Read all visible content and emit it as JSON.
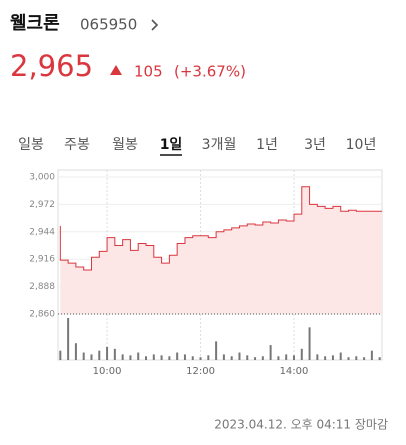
{
  "header": {
    "name": "웰크론",
    "code": "065950",
    "price": "2,965",
    "change": "105",
    "change_pct": "(+3.67%)"
  },
  "tabs": [
    "일봉",
    "주봉",
    "월봉",
    "1일",
    "3개월",
    "1년",
    "3년",
    "10년"
  ],
  "chart_data": {
    "type": "line",
    "x": [
      540,
      550,
      560,
      570,
      580,
      590,
      600,
      610,
      620,
      630,
      640,
      650,
      660,
      670,
      680,
      690,
      700,
      710,
      720,
      730,
      740,
      750,
      760,
      770,
      780,
      790,
      800,
      810,
      820,
      830,
      840,
      850,
      860,
      870,
      880,
      890,
      900,
      910,
      920,
      930,
      940,
      950
    ],
    "series": [
      {
        "color": "#d9363e",
        "values": [
          2950,
          2915,
          2912,
          2908,
          2905,
          2918,
          2924,
          2938,
          2930,
          2936,
          2925,
          2932,
          2930,
          2918,
          2912,
          2920,
          2932,
          2938,
          2940,
          2940,
          2938,
          2944,
          2946,
          2948,
          2950,
          2952,
          2951,
          2954,
          2953,
          2956,
          2955,
          2962,
          2990,
          2972,
          2970,
          2968,
          2970,
          2965,
          2966,
          2965,
          2965,
          2965
        ]
      }
    ],
    "volume": {
      "color": "#777777",
      "ylim": [
        0,
        45
      ],
      "values": [
        10,
        45,
        18,
        8,
        6,
        10,
        14,
        12,
        6,
        5,
        8,
        4,
        6,
        5,
        4,
        8,
        6,
        4,
        3,
        5,
        20,
        6,
        4,
        8,
        5,
        3,
        4,
        16,
        4,
        6,
        5,
        12,
        35,
        6,
        4,
        5,
        8,
        3,
        4,
        3,
        10,
        3
      ]
    },
    "xlim": [
      537,
      953
    ],
    "xticks": [
      {
        "value": 600,
        "label": "10:00"
      },
      {
        "value": 720,
        "label": "12:00"
      },
      {
        "value": 840,
        "label": "14:00"
      }
    ],
    "ylim": [
      2860,
      3000
    ],
    "yticks": [
      {
        "value": 2860,
        "label": "2,860"
      },
      {
        "value": 2888,
        "label": "2,888"
      },
      {
        "value": 2916,
        "label": "2,916"
      },
      {
        "value": 2944,
        "label": "2,944"
      },
      {
        "value": 2972,
        "label": "2,972"
      },
      {
        "value": 3000,
        "label": "3,000"
      }
    ],
    "grid": true
  },
  "footer": "2023.04.12. 오후 04:11 장마감"
}
